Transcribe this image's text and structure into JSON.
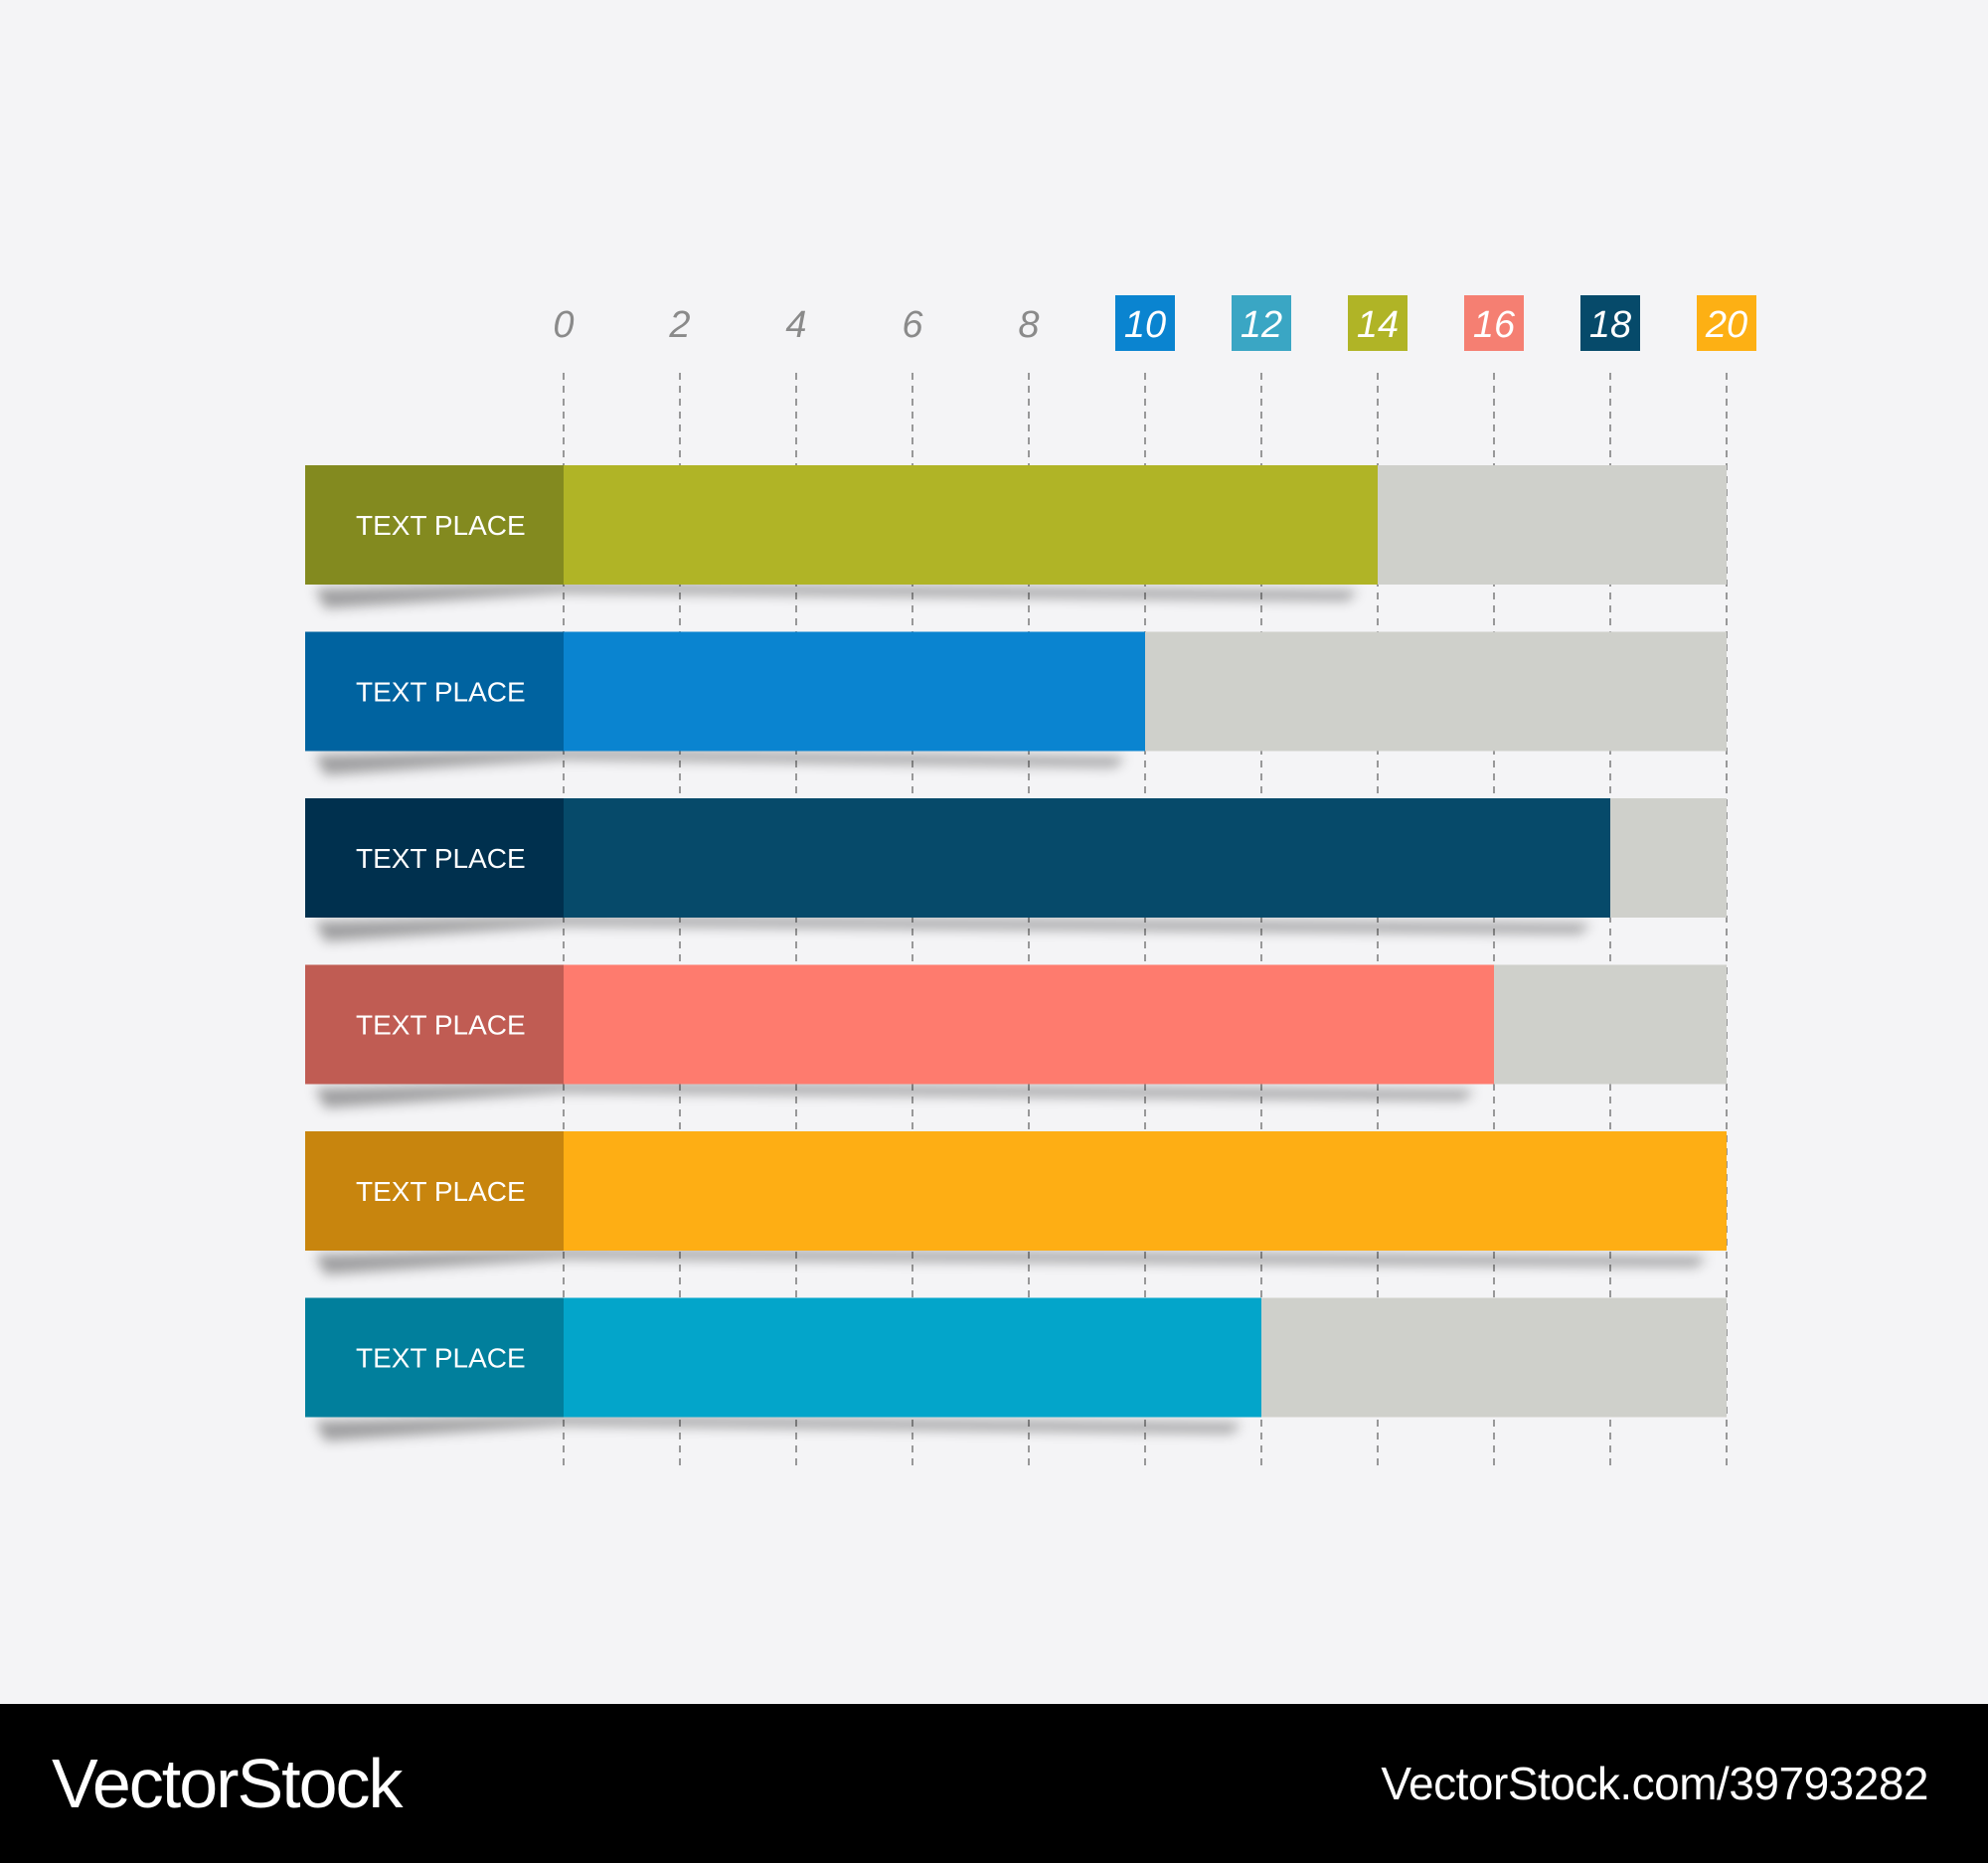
{
  "chart_data": {
    "type": "bar",
    "orientation": "horizontal",
    "title": "",
    "xlabel": "",
    "ylabel": "",
    "xlim": [
      0,
      20
    ],
    "ticks": [
      0,
      2,
      4,
      6,
      8,
      10,
      12,
      14,
      16,
      18,
      20
    ],
    "tick_badges": [
      {
        "value": 10,
        "color": "#0a84d0"
      },
      {
        "value": 12,
        "color": "#3aa6c4"
      },
      {
        "value": 14,
        "color": "#b0b426"
      },
      {
        "value": 16,
        "color": "#f57f72"
      },
      {
        "value": 18,
        "color": "#064a6a"
      },
      {
        "value": 20,
        "color": "#fdb014"
      }
    ],
    "grid": "vertical dashed",
    "track_color": "#cfd0cb",
    "categories": [
      "TEXT PLACE",
      "TEXT PLACE",
      "TEXT PLACE",
      "TEXT PLACE",
      "TEXT PLACE",
      "TEXT PLACE"
    ],
    "values": [
      14,
      10,
      18,
      16,
      20,
      12
    ],
    "bar_colors": [
      "#b0b426",
      "#0a84d0",
      "#064a6a",
      "#fe7b6e",
      "#feae14",
      "#03a5ca"
    ],
    "label_colors": [
      "#838a1f",
      "#0063a0",
      "#00304e",
      "#c05c53",
      "#c8850e",
      "#017f9c"
    ]
  },
  "footer": {
    "logo": "VectorStock",
    "url": "VectorStock.com/39793282"
  }
}
